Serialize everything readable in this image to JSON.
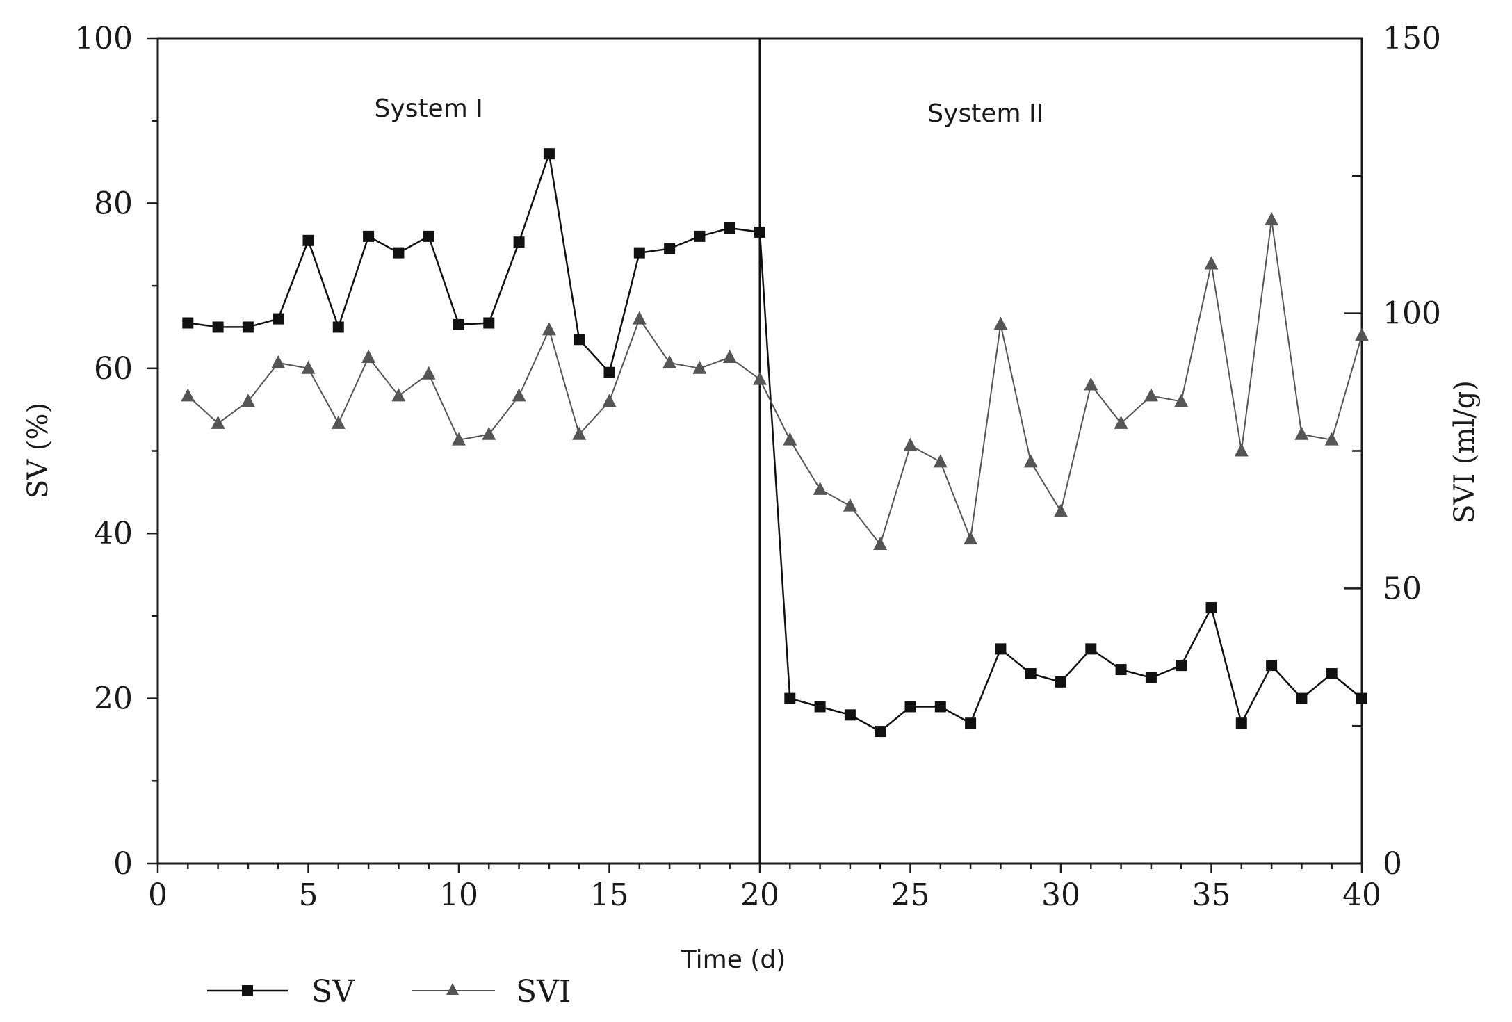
{
  "chart_data": {
    "type": "line",
    "xlabel": "Time (d)",
    "ylabel": "SV (%)",
    "y2label": "SVI (ml/g)",
    "xlim": [
      0,
      40
    ],
    "ylim": [
      0,
      100
    ],
    "y2lim": [
      0,
      150
    ],
    "x_ticks": [
      0,
      5,
      10,
      15,
      20,
      25,
      30,
      35,
      40
    ],
    "y_ticks": [
      0,
      20,
      40,
      60,
      80,
      100
    ],
    "y2_ticks": [
      0,
      50,
      100,
      150
    ],
    "divider_x": 20,
    "regions": [
      {
        "label": "System I",
        "x": 9
      },
      {
        "label": "System II",
        "x": 27.5
      }
    ],
    "grid": false,
    "legend_position": "bottom-left",
    "x": [
      1,
      2,
      3,
      4,
      5,
      6,
      7,
      8,
      9,
      10,
      11,
      12,
      13,
      14,
      15,
      16,
      17,
      18,
      19,
      20,
      21,
      22,
      23,
      24,
      25,
      26,
      27,
      28,
      29,
      30,
      31,
      32,
      33,
      34,
      35,
      36,
      37,
      38,
      39,
      40
    ],
    "series": [
      {
        "name": "SV",
        "axis": "left",
        "marker": "square",
        "color": "#111111",
        "values": [
          65.5,
          65,
          65,
          66,
          75.5,
          65,
          76,
          74,
          76,
          65.3,
          65.5,
          75.3,
          86,
          63.5,
          59.5,
          74,
          74.5,
          76,
          77,
          76.5,
          20,
          19,
          18,
          16,
          19,
          19,
          17,
          26,
          23,
          22,
          26,
          23.5,
          22.5,
          24,
          31,
          17,
          24,
          20,
          23,
          20
        ]
      },
      {
        "name": "SVI",
        "axis": "right",
        "marker": "triangle",
        "color": "#555555",
        "values": [
          85,
          80,
          84,
          91,
          90,
          80,
          92,
          85,
          89,
          77,
          78,
          85,
          97,
          78,
          84,
          99,
          91,
          90,
          92,
          88,
          77,
          68,
          65,
          58,
          76,
          73,
          59,
          98,
          73,
          64,
          87,
          80,
          85,
          84,
          109,
          75,
          117,
          78,
          77,
          96
        ]
      }
    ]
  }
}
